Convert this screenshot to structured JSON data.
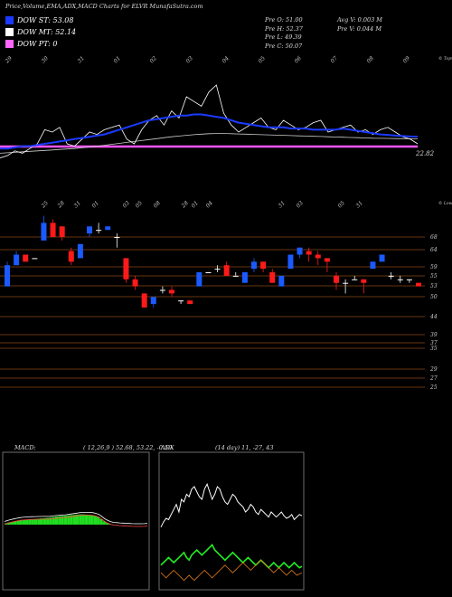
{
  "header": {
    "title": "Price,Volume,EMA,ADX,MACD Charts for ELVR MunafaSutra.com"
  },
  "legend": [
    {
      "label": "DOW ST: 53.08",
      "color": "#1a3aff"
    },
    {
      "label": "DOW MT: 52.14",
      "color": "#ffffff"
    },
    {
      "label": "DOW PT: 0",
      "color": "#ff66ff"
    }
  ],
  "info": {
    "col1": [
      "Pre   O: 51.00",
      "Pre   H: 52.37",
      "Pre   L: 49.39",
      "Pre   C: 50.07"
    ],
    "col2": [
      "Avg V: 0.003 M",
      "Pre   V: 0.044  M"
    ]
  },
  "colors": {
    "up": "#1a5aff",
    "down": "#ff1a1a",
    "doji": "#ffffff",
    "grid": "#8b4513",
    "pt": "#ff55ff",
    "st": "#1a3aff"
  },
  "chart_data": [
    {
      "type": "line",
      "name": "ema-panel",
      "top_ticks": [
        "29",
        "30",
        "31",
        "01",
        "02",
        "03",
        "04",
        "05",
        "06",
        "07",
        "08",
        "09"
      ],
      "top_note": "© Topw",
      "price_label": "22.82",
      "series": [
        {
          "name": "DOW ST",
          "values": [
            48,
            48,
            48.5,
            49,
            49,
            49.5,
            50,
            50.5,
            51,
            51.5,
            52,
            52.5,
            53,
            53.5,
            54,
            55,
            56,
            57,
            58,
            59,
            60,
            60.5,
            61,
            61.5,
            62,
            62,
            62.5,
            62.5,
            62,
            61.5,
            61,
            60,
            59,
            58.5,
            58,
            57.5,
            57,
            57,
            57,
            56.5,
            56.5,
            56.5,
            56,
            56,
            56,
            56,
            56.5,
            56,
            55.5,
            55,
            54.5,
            54,
            53.8,
            53.5,
            53.3,
            53.1,
            53.08
          ]
        },
        {
          "name": "DOW MT",
          "values": [
            46,
            46.2,
            46.4,
            46.6,
            46.8,
            47,
            47.2,
            47.4,
            47.6,
            47.8,
            48,
            48.3,
            48.6,
            49,
            49.4,
            49.8,
            50.2,
            50.6,
            51,
            51.4,
            51.8,
            52.2,
            52.6,
            53,
            53.3,
            53.6,
            53.9,
            54.1,
            54.3,
            54.4,
            54.4,
            54.3,
            54.2,
            54.1,
            54,
            53.9,
            53.8,
            53.7,
            53.6,
            53.5,
            53.4,
            53.3,
            53.2,
            53.1,
            53,
            52.9,
            52.8,
            52.7,
            52.6,
            52.5,
            52.4,
            52.35,
            52.3,
            52.25,
            52.2,
            52.16,
            52.14
          ]
        },
        {
          "name": "Price",
          "values": [
            44,
            45,
            47,
            46,
            48,
            50,
            56,
            55,
            57,
            50,
            49,
            52,
            55,
            54,
            56,
            57,
            58,
            52,
            50,
            56,
            60,
            62,
            58,
            64,
            61,
            70,
            68,
            66,
            72,
            75,
            63,
            58,
            55,
            57,
            59,
            61,
            57,
            56,
            60,
            58,
            56,
            57,
            59,
            60,
            55,
            56,
            57,
            58,
            55,
            56,
            54,
            56,
            57,
            55,
            53,
            52,
            50
          ]
        },
        {
          "name": "DOW PT",
          "values": [
            52,
            52,
            52,
            52,
            52,
            52,
            52,
            52,
            52,
            52,
            52,
            52,
            52,
            52,
            52,
            52,
            52,
            52,
            52,
            52,
            52,
            52,
            52,
            52,
            52,
            52,
            52,
            52,
            52,
            52,
            52,
            52,
            52,
            52,
            52,
            52,
            52,
            52,
            52,
            52,
            52,
            52,
            52,
            52,
            52,
            52,
            52,
            52,
            52,
            52,
            52,
            52,
            52,
            52,
            52,
            52,
            52
          ]
        }
      ]
    },
    {
      "type": "bar",
      "name": "candle-panel",
      "top_ticks": [
        "25",
        "28",
        "31",
        "01",
        "03",
        "05",
        "08",
        "28",
        "01",
        "04",
        "31",
        "03",
        "05",
        "31"
      ],
      "top_note": "© Lower",
      "price_axis": [
        "68",
        "64",
        "59",
        "55",
        "53",
        "50",
        "44",
        "39",
        "37",
        "35",
        "29",
        "27",
        "25"
      ],
      "candles": [
        {
          "o": 50,
          "c": 56,
          "h": 57,
          "l": 50
        },
        {
          "o": 56,
          "c": 59,
          "h": 60,
          "l": 56
        },
        {
          "o": 59,
          "c": 57,
          "h": 59,
          "l": 57
        },
        {
          "o": 58,
          "c": 58,
          "h": 58,
          "l": 58
        },
        {
          "o": 63,
          "c": 68,
          "h": 70,
          "l": 63
        },
        {
          "o": 68,
          "c": 64,
          "h": 69,
          "l": 64
        },
        {
          "o": 67,
          "c": 64,
          "h": 67,
          "l": 63
        },
        {
          "o": 60,
          "c": 57,
          "h": 61,
          "l": 56
        },
        {
          "o": 58,
          "c": 62,
          "h": 62,
          "l": 58
        },
        {
          "o": 65,
          "c": 67,
          "h": 67,
          "l": 64
        },
        {
          "o": 66,
          "c": 66,
          "h": 68,
          "l": 65
        },
        {
          "o": 66,
          "c": 67,
          "h": 67,
          "l": 66
        },
        {
          "o": 64,
          "c": 64,
          "h": 65,
          "l": 61
        },
        {
          "o": 58,
          "c": 52,
          "h": 58,
          "l": 51
        },
        {
          "o": 52,
          "c": 50,
          "h": 53,
          "l": 49
        },
        {
          "o": 48,
          "c": 44,
          "h": 48,
          "l": 44
        },
        {
          "o": 45,
          "c": 47,
          "h": 47,
          "l": 44
        },
        {
          "o": 49,
          "c": 49,
          "h": 50,
          "l": 48
        },
        {
          "o": 49,
          "c": 48,
          "h": 50,
          "l": 47
        },
        {
          "o": 46,
          "c": 46,
          "h": 46,
          "l": 45
        },
        {
          "o": 46,
          "c": 45,
          "h": 46,
          "l": 45
        },
        {
          "o": 50,
          "c": 54,
          "h": 54,
          "l": 50
        },
        {
          "o": 54,
          "c": 54,
          "h": 54,
          "l": 54
        },
        {
          "o": 55,
          "c": 55,
          "h": 56,
          "l": 54
        },
        {
          "o": 56,
          "c": 53,
          "h": 57,
          "l": 53
        },
        {
          "o": 53,
          "c": 53,
          "h": 54,
          "l": 53
        },
        {
          "o": 51,
          "c": 54,
          "h": 54,
          "l": 51
        },
        {
          "o": 55,
          "c": 57,
          "h": 58,
          "l": 54
        },
        {
          "o": 57,
          "c": 55,
          "h": 57,
          "l": 54
        },
        {
          "o": 54,
          "c": 51,
          "h": 55,
          "l": 51
        },
        {
          "o": 50,
          "c": 53,
          "h": 53,
          "l": 50
        },
        {
          "o": 55,
          "c": 59,
          "h": 59,
          "l": 55
        },
        {
          "o": 59,
          "c": 61,
          "h": 61,
          "l": 58
        },
        {
          "o": 60,
          "c": 59,
          "h": 61,
          "l": 57
        },
        {
          "o": 59,
          "c": 58,
          "h": 60,
          "l": 56
        },
        {
          "o": 58,
          "c": 57,
          "h": 58,
          "l": 54
        },
        {
          "o": 53,
          "c": 51,
          "h": 54,
          "l": 49
        },
        {
          "o": 51,
          "c": 51,
          "h": 52,
          "l": 48
        },
        {
          "o": 52,
          "c": 52,
          "h": 53,
          "l": 52
        },
        {
          "o": 52,
          "c": 51,
          "h": 52,
          "l": 48
        },
        {
          "o": 55,
          "c": 57,
          "h": 57,
          "l": 55
        },
        {
          "o": 57,
          "c": 59,
          "h": 59,
          "l": 57
        },
        {
          "o": 53,
          "c": 53,
          "h": 54,
          "l": 52
        },
        {
          "o": 52,
          "c": 52,
          "h": 53,
          "l": 51
        },
        {
          "o": 52,
          "c": 52,
          "h": 52,
          "l": 51
        },
        {
          "o": 51,
          "c": 50,
          "h": 51,
          "l": 50
        }
      ],
      "hlines": [
        68,
        64,
        59,
        55,
        53,
        50,
        44,
        39,
        37,
        35,
        29,
        27,
        25
      ]
    },
    {
      "type": "line",
      "name": "macd-panel",
      "label": "MACD:",
      "values_label": "( 12,26,9 ) 52.68,  53.22,  -0.59",
      "hist": [
        0.5,
        0.8,
        1.0,
        1.2,
        1.4,
        1.6,
        1.7,
        1.8,
        1.9,
        2.0,
        2.1,
        2.2,
        2.3,
        2.4,
        2.5,
        2.6,
        2.8,
        3.0,
        3.1,
        3.2,
        3.3,
        3.4,
        3.5,
        3.6,
        3.7,
        3.8,
        3.8,
        3.7,
        3.6,
        3.5,
        3.2,
        2.8,
        2.0,
        1.2,
        0.6,
        0.2,
        0,
        0,
        0,
        0,
        0,
        0,
        0,
        0,
        0,
        0,
        0,
        0
      ]
    },
    {
      "type": "line",
      "name": "adx-panel",
      "label": "ADX",
      "values_label": "(14  day) 11,  -27,  43",
      "series": [
        {
          "name": "ADX",
          "values": [
            48,
            52,
            55,
            54,
            58,
            62,
            66,
            60,
            70,
            68,
            74,
            72,
            78,
            80,
            76,
            72,
            70,
            78,
            82,
            76,
            70,
            74,
            80,
            78,
            72,
            68,
            66,
            70,
            74,
            72,
            68,
            66,
            64,
            60,
            62,
            66,
            64,
            60,
            58,
            62,
            60,
            58,
            56,
            60,
            58,
            56,
            58,
            60,
            57,
            55,
            56,
            58,
            54,
            56,
            58,
            57
          ]
        },
        {
          "name": "+DI",
          "values": [
            18,
            20,
            22,
            24,
            22,
            20,
            22,
            24,
            26,
            28,
            24,
            22,
            26,
            28,
            30,
            28,
            26,
            28,
            30,
            32,
            34,
            30,
            28,
            26,
            24,
            22,
            24,
            26,
            28,
            26,
            24,
            22,
            20,
            22,
            24,
            22,
            20,
            18,
            20,
            22,
            20,
            18,
            16,
            18,
            20,
            18,
            16,
            18,
            20,
            18,
            16,
            18,
            20,
            18,
            16,
            17
          ]
        },
        {
          "name": "-DI",
          "values": [
            12,
            10,
            8,
            10,
            12,
            14,
            12,
            10,
            8,
            6,
            8,
            10,
            8,
            6,
            8,
            10,
            12,
            14,
            12,
            10,
            8,
            10,
            12,
            14,
            16,
            18,
            16,
            14,
            12,
            14,
            16,
            18,
            20,
            18,
            16,
            14,
            16,
            18,
            20,
            22,
            20,
            18,
            16,
            14,
            12,
            14,
            16,
            14,
            12,
            10,
            12,
            14,
            12,
            10,
            11,
            12
          ]
        }
      ]
    }
  ]
}
